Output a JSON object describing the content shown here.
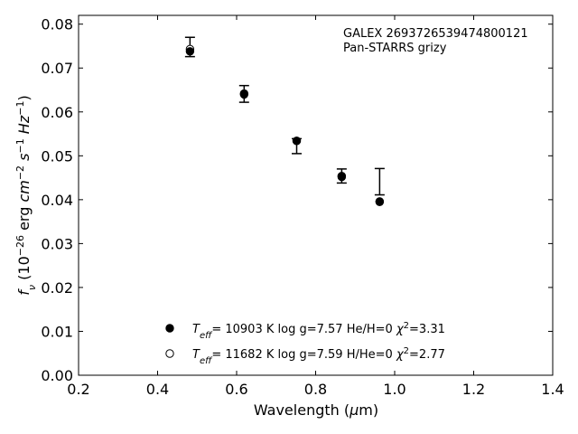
{
  "chart_data": {
    "type": "scatter",
    "xlabel": "Wavelength (μm)",
    "ylabel": "f_ν (10^−26 erg cm^−2 s^−1 Hz^−1)",
    "xlim": [
      0.2,
      1.4
    ],
    "ylim": [
      0.0,
      0.082
    ],
    "xticks": [
      0.2,
      0.4,
      0.6,
      0.8,
      1.0,
      1.2,
      1.4
    ],
    "xtick_labels": [
      "0.2",
      "0.4",
      "0.6",
      "0.8",
      "1.0",
      "1.2",
      "1.4"
    ],
    "yticks": [
      0.0,
      0.01,
      0.02,
      0.03,
      0.04,
      0.05,
      0.06,
      0.07,
      0.08
    ],
    "ytick_labels": [
      "0.00",
      "0.01",
      "0.02",
      "0.03",
      "0.04",
      "0.05",
      "0.06",
      "0.07",
      "0.08"
    ],
    "grid": false,
    "legend_position": "bottom-center",
    "annotation": {
      "line1": "GALEX 2693726539474800121",
      "line2": "Pan-STARRS grizy"
    },
    "observed": {
      "x": [
        0.482,
        0.619,
        0.752,
        0.866,
        0.962
      ],
      "y": [
        0.0748,
        0.0641,
        0.0522,
        0.0454,
        0.0441
      ],
      "yerr": [
        0.0022,
        0.0019,
        0.0017,
        0.0016,
        0.003
      ]
    },
    "series": [
      {
        "name": "T_eff= 10903 K  log g=7.57  He/H=0  χ²=3.31",
        "marker": "filled-circle",
        "x": [
          0.482,
          0.619,
          0.752,
          0.866,
          0.962
        ],
        "y": [
          0.0738,
          0.064,
          0.0534,
          0.0452,
          0.0395
        ]
      },
      {
        "name": "T_eff= 11682 K  log g=7.59  H/He=0  χ²=2.77",
        "marker": "open-circle",
        "x": [
          0.482,
          0.619,
          0.752,
          0.866,
          0.962
        ],
        "y": [
          0.0743,
          0.0642,
          0.0534,
          0.0454,
          0.0396
        ]
      }
    ],
    "legend": [
      {
        "teff_value": "10903",
        "logg_value": "7.57",
        "comp": "He/H=0",
        "chi2_value": "3.31"
      },
      {
        "teff_value": "11682",
        "logg_value": "7.59",
        "comp": "H/He=0",
        "chi2_value": "2.77"
      }
    ]
  }
}
